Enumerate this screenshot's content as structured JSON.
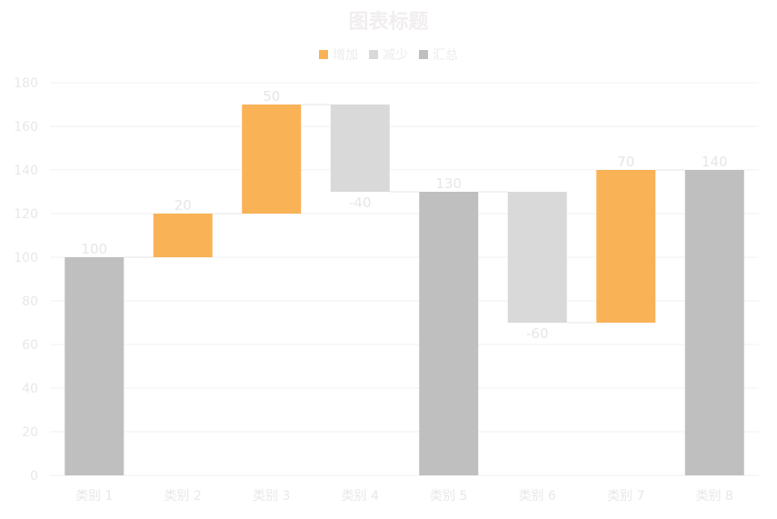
{
  "chart_data": {
    "type": "waterfall",
    "title": "图表标题",
    "categories": [
      "类别 1",
      "类别 2",
      "类别 3",
      "类别 4",
      "类别 5",
      "类别 6",
      "类别 7",
      "类别 8"
    ],
    "values": [
      100,
      20,
      50,
      -40,
      130,
      -60,
      70,
      140
    ],
    "kinds": [
      "total",
      "increase",
      "increase",
      "decrease",
      "total",
      "decrease",
      "increase",
      "total"
    ],
    "data_labels": [
      "100",
      "20",
      "50",
      "-40",
      "130",
      "-60",
      "70",
      "140"
    ],
    "legend": [
      {
        "key": "increase",
        "label": "增加",
        "color": "#f9b256"
      },
      {
        "key": "decrease",
        "label": "减少",
        "color": "#d9d9d9"
      },
      {
        "key": "total",
        "label": "汇总",
        "color": "#bfbfbf"
      }
    ],
    "ylim": [
      0,
      180
    ],
    "yticks": [
      0,
      20,
      40,
      60,
      80,
      100,
      120,
      140,
      160,
      180
    ],
    "legend_position": "top",
    "grid": true,
    "xlabel": "",
    "ylabel": ""
  }
}
